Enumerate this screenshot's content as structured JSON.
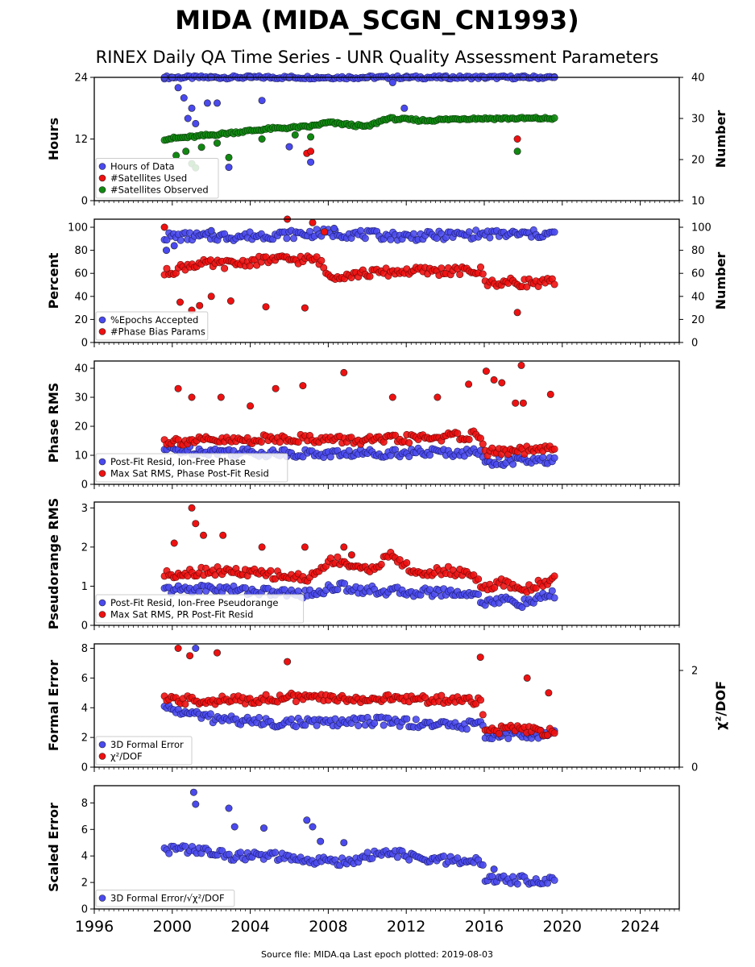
{
  "title": "MIDA (MIDA_SCGN_CN1993)",
  "subtitle": "RINEX Daily QA Time Series - UNR Quality Assessment Parameters",
  "footer": "Source file: MIDA.qa Last epoch plotted: 2019-08-03",
  "colors": {
    "blue": "#4a4aee",
    "red": "#ee1111",
    "green": "#118811",
    "dark_blue": "#1c1c6a",
    "dark_red": "#6a0a0a"
  },
  "chart_data": [
    {
      "type": "scatter",
      "ylabel": "Hours",
      "y2label": "Number",
      "xlim": [
        1996,
        2026
      ],
      "ylim": [
        0,
        24
      ],
      "y2lim": [
        10,
        40
      ],
      "yticks": [
        "0",
        "12",
        "24"
      ],
      "y2ticks": [
        "10",
        "20",
        "30",
        "40"
      ],
      "series": [
        {
          "name": "Hours of Data",
          "color": "blue",
          "axis": "left",
          "points": [
            [
              1999.6,
              24
            ],
            [
              2000,
              24
            ],
            [
              2002,
              24
            ],
            [
              2004,
              24
            ],
            [
              2006,
              24
            ],
            [
              2008,
              24
            ],
            [
              2010,
              24
            ],
            [
              2012,
              24
            ],
            [
              2014,
              24
            ],
            [
              2016,
              24
            ],
            [
              2018,
              24
            ],
            [
              2019.6,
              24
            ],
            [
              2000.3,
              22
            ],
            [
              2000.6,
              20
            ],
            [
              2001,
              18
            ],
            [
              2000.8,
              16
            ],
            [
              2001.2,
              15
            ],
            [
              2001.8,
              19
            ],
            [
              2002.3,
              19
            ],
            [
              2002.9,
              6.5
            ],
            [
              2004.6,
              19.5
            ],
            [
              2006,
              10.5
            ],
            [
              2007.1,
              7.5
            ],
            [
              2011.3,
              23
            ],
            [
              2011.9,
              18
            ]
          ],
          "trend": [
            [
              1999.6,
              24
            ],
            [
              2019.6,
              24
            ]
          ]
        },
        {
          "name": "#Satellites Used",
          "color": "red",
          "axis": "right",
          "points": [
            [
              2006.9,
              21.5
            ],
            [
              2007.1,
              22
            ],
            [
              2017.7,
              25
            ]
          ]
        },
        {
          "name": "#Satellites Observed",
          "color": "green",
          "axis": "right",
          "points": [
            [
              2000.2,
              21
            ],
            [
              2000.7,
              22
            ],
            [
              2001,
              19
            ],
            [
              2001.2,
              18
            ],
            [
              2001.5,
              23
            ],
            [
              2002.3,
              24
            ],
            [
              2002.9,
              20.5
            ],
            [
              2004.6,
              25
            ],
            [
              2006.3,
              26
            ],
            [
              2007.1,
              25.5
            ],
            [
              2017.7,
              22
            ]
          ],
          "trend": [
            [
              1999.6,
              25
            ],
            [
              2001,
              25.5
            ],
            [
              2003,
              26.5
            ],
            [
              2005,
              27.5
            ],
            [
              2007,
              28
            ],
            [
              2008,
              29
            ],
            [
              2010,
              28
            ],
            [
              2011,
              30
            ],
            [
              2013,
              29.5
            ],
            [
              2015,
              30
            ],
            [
              2017,
              30
            ],
            [
              2019.6,
              30
            ]
          ]
        }
      ]
    },
    {
      "type": "scatter",
      "ylabel": "Percent",
      "y2label": "Number",
      "xlim": [
        1996,
        2026
      ],
      "ylim": [
        0,
        107
      ],
      "y2lim": [
        0,
        107
      ],
      "yticks": [
        "0",
        "20",
        "40",
        "60",
        "80",
        "100"
      ],
      "y2ticks": [
        "0",
        "20",
        "40",
        "60",
        "80",
        "100"
      ],
      "series": [
        {
          "name": "%Epochs Accepted",
          "color": "blue",
          "axis": "left",
          "points": [
            [
              1999.7,
              80
            ],
            [
              2000.1,
              84
            ],
            [
              2002,
              97
            ],
            [
              2008.3,
              99
            ]
          ],
          "trend": [
            [
              1999.6,
              92
            ],
            [
              2003,
              92
            ],
            [
              2008,
              95
            ],
            [
              2012,
              92
            ],
            [
              2016,
              94
            ],
            [
              2019.6,
              94
            ]
          ]
        },
        {
          "name": "#Phase Bias Params",
          "color": "red",
          "axis": "right",
          "points": [
            [
              1999.6,
              100
            ],
            [
              2000.4,
              35
            ],
            [
              2001,
              28
            ],
            [
              2001.4,
              32
            ],
            [
              2002,
              40
            ],
            [
              2003,
              36
            ],
            [
              2004.8,
              31
            ],
            [
              2005.9,
              107
            ],
            [
              2006.8,
              30
            ],
            [
              2007.2,
              104
            ],
            [
              2007.8,
              96
            ],
            [
              2017.7,
              26
            ]
          ],
          "trend": [
            [
              1999.6,
              60
            ],
            [
              2001,
              68
            ],
            [
              2003,
              68
            ],
            [
              2005,
              72
            ],
            [
              2007.5,
              72
            ],
            [
              2008,
              58
            ],
            [
              2010,
              60
            ],
            [
              2012,
              62
            ],
            [
              2014,
              62
            ],
            [
              2015.9,
              62
            ],
            [
              2016,
              52
            ],
            [
              2019.6,
              52
            ]
          ]
        }
      ]
    },
    {
      "type": "scatter",
      "ylabel": "Phase RMS",
      "xlim": [
        1996,
        2026
      ],
      "ylim": [
        0,
        42.5
      ],
      "yticks": [
        "0",
        "10",
        "20",
        "30",
        "40"
      ],
      "series": [
        {
          "name": "Post-Fit Resid, Ion-Free Phase",
          "color": "blue",
          "axis": "left",
          "points": [],
          "trend": [
            [
              1999.6,
              12
            ],
            [
              2004,
              11
            ],
            [
              2008,
              10.5
            ],
            [
              2012,
              11
            ],
            [
              2015.9,
              11
            ],
            [
              2016,
              8
            ],
            [
              2019.6,
              8
            ]
          ]
        },
        {
          "name": "Max Sat RMS, Phase Post-Fit Resid",
          "color": "red",
          "axis": "left",
          "points": [
            [
              2000.3,
              33
            ],
            [
              2001,
              30
            ],
            [
              2002.5,
              30
            ],
            [
              2004,
              27
            ],
            [
              2005.3,
              33
            ],
            [
              2006.7,
              34
            ],
            [
              2008.8,
              38.5
            ],
            [
              2011.3,
              30
            ],
            [
              2013.6,
              30
            ],
            [
              2015.2,
              34.5
            ],
            [
              2016.1,
              39
            ],
            [
              2016.5,
              36
            ],
            [
              2016.9,
              35
            ],
            [
              2017.9,
              41
            ],
            [
              2019.4,
              31
            ],
            [
              2018,
              28
            ],
            [
              2017.6,
              28
            ]
          ],
          "trend": [
            [
              1999.6,
              15
            ],
            [
              2003,
              15
            ],
            [
              2006,
              16
            ],
            [
              2010,
              15
            ],
            [
              2013,
              16
            ],
            [
              2015.9,
              17
            ],
            [
              2016,
              11
            ],
            [
              2019.6,
              12
            ]
          ]
        }
      ]
    },
    {
      "type": "scatter",
      "ylabel": "Pseudorange RMS",
      "xlim": [
        1996,
        2026
      ],
      "ylim": [
        0,
        3.15
      ],
      "yticks": [
        "0",
        "1",
        "2",
        "3"
      ],
      "series": [
        {
          "name": "Post-Fit Resid, Ion-Free Pseudorange",
          "color": "blue",
          "axis": "left",
          "points": [],
          "trend": [
            [
              1999.6,
              0.9
            ],
            [
              2002,
              0.95
            ],
            [
              2005,
              0.85
            ],
            [
              2007,
              0.8
            ],
            [
              2008.5,
              1.0
            ],
            [
              2010,
              0.9
            ],
            [
              2012,
              0.85
            ],
            [
              2014,
              0.85
            ],
            [
              2015.5,
              0.8
            ],
            [
              2016,
              0.6
            ],
            [
              2017,
              0.65
            ],
            [
              2018,
              0.55
            ],
            [
              2019.6,
              0.8
            ]
          ]
        },
        {
          "name": "Max Sat RMS, PR Post-Fit Resid",
          "color": "red",
          "axis": "left",
          "points": [
            [
              2000.1,
              2.1
            ],
            [
              2001,
              3.0
            ],
            [
              2001.2,
              2.6
            ],
            [
              2001.6,
              2.3
            ],
            [
              2002.6,
              2.3
            ],
            [
              2004.6,
              2.0
            ],
            [
              2006.8,
              2.0
            ],
            [
              2008.8,
              2.0
            ],
            [
              2009.2,
              1.8
            ]
          ],
          "trend": [
            [
              1999.6,
              1.3
            ],
            [
              2002,
              1.4
            ],
            [
              2005,
              1.3
            ],
            [
              2007,
              1.2
            ],
            [
              2008.3,
              1.7
            ],
            [
              2010,
              1.4
            ],
            [
              2011.3,
              1.8
            ],
            [
              2012.5,
              1.3
            ],
            [
              2014,
              1.4
            ],
            [
              2015.5,
              1.3
            ],
            [
              2016,
              0.9
            ],
            [
              2017,
              1.1
            ],
            [
              2018,
              0.9
            ],
            [
              2019.6,
              1.2
            ]
          ]
        }
      ]
    },
    {
      "type": "scatter",
      "ylabel": "Formal Error",
      "y2label": "χ²/DOF",
      "xlim": [
        1996,
        2026
      ],
      "ylim": [
        0,
        8.3
      ],
      "y2lim": [
        0,
        2.55
      ],
      "yticks": [
        "0",
        "2",
        "4",
        "6",
        "8"
      ],
      "y2ticks": [
        "0",
        "2"
      ],
      "series": [
        {
          "name": "3D Formal Error",
          "color": "blue",
          "axis": "left",
          "points": [
            [
              2001.2,
              8.0
            ]
          ],
          "trend": [
            [
              1999.6,
              4.0
            ],
            [
              2002,
              3.3
            ],
            [
              2005,
              3.0
            ],
            [
              2008,
              3.0
            ],
            [
              2011,
              3.1
            ],
            [
              2013,
              2.9
            ],
            [
              2015.9,
              2.8
            ],
            [
              2016,
              2.2
            ],
            [
              2019.6,
              2.2
            ]
          ]
        },
        {
          "name": "χ²/DOF",
          "color": "red",
          "axis": "left",
          "points": [
            [
              2000.3,
              8.0
            ],
            [
              2000.9,
              7.5
            ],
            [
              2002.3,
              7.7
            ],
            [
              2005.9,
              7.1
            ],
            [
              2015.8,
              7.4
            ],
            [
              2018.2,
              6.0
            ],
            [
              2019.3,
              5.0
            ]
          ],
          "trend": [
            [
              1999.6,
              4.5
            ],
            [
              2003,
              4.5
            ],
            [
              2006,
              4.7
            ],
            [
              2009,
              4.6
            ],
            [
              2012,
              4.6
            ],
            [
              2015.9,
              4.5
            ],
            [
              2016,
              2.3
            ],
            [
              2017,
              2.6
            ],
            [
              2019.6,
              2.3
            ]
          ]
        }
      ]
    },
    {
      "type": "scatter",
      "ylabel": "Scaled Error",
      "xlim": [
        1996,
        2026
      ],
      "ylim": [
        0,
        9.3
      ],
      "yticks": [
        "0",
        "2",
        "4",
        "6",
        "8"
      ],
      "xticks": [
        "1996",
        "2000",
        "2004",
        "2008",
        "2012",
        "2016",
        "2020",
        "2024"
      ],
      "series": [
        {
          "name": "3D Formal Error/√χ²/DOF",
          "color": "blue",
          "axis": "left",
          "points": [
            [
              2001.1,
              8.8
            ],
            [
              2001.2,
              7.9
            ],
            [
              2002.9,
              7.6
            ],
            [
              2003.2,
              6.2
            ],
            [
              2004.7,
              6.1
            ],
            [
              2006.9,
              6.7
            ],
            [
              2007.2,
              6.2
            ],
            [
              2007.6,
              5.1
            ],
            [
              2008.8,
              5.0
            ],
            [
              2016.5,
              3.0
            ]
          ],
          "trend": [
            [
              1999.6,
              4.5
            ],
            [
              2001,
              4.5
            ],
            [
              2003,
              4.0
            ],
            [
              2005,
              4.0
            ],
            [
              2007,
              3.6
            ],
            [
              2009,
              3.6
            ],
            [
              2011,
              4.3
            ],
            [
              2013,
              3.7
            ],
            [
              2015.9,
              3.6
            ],
            [
              2016,
              2.2
            ],
            [
              2019.6,
              2.2
            ]
          ]
        }
      ]
    }
  ]
}
